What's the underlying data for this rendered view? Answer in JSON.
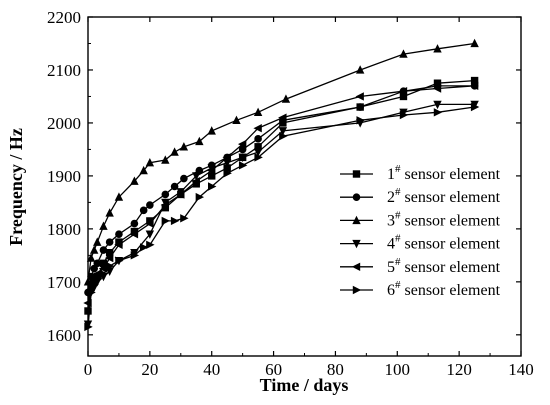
{
  "chart_data": {
    "type": "line",
    "xlabel": "Time / days",
    "ylabel": "Frequency / Hz",
    "xlim": [
      0,
      140
    ],
    "ylim": [
      1560,
      2200
    ],
    "xticks": [
      0,
      20,
      40,
      60,
      80,
      100,
      120,
      140
    ],
    "yticks": [
      1600,
      1700,
      1800,
      1900,
      2000,
      2100,
      2200
    ],
    "grid": false,
    "legend_position": "right",
    "series": [
      {
        "name": "1# sensor element",
        "label_main": "1",
        "label_sup": "#",
        "label_rest": " sensor element",
        "marker": "square",
        "x": [
          0,
          1,
          2,
          3,
          5,
          7,
          10,
          15,
          20,
          25,
          30,
          35,
          40,
          45,
          50,
          55,
          63,
          88,
          102,
          113,
          125
        ],
        "y": [
          1645,
          1690,
          1700,
          1710,
          1735,
          1755,
          1775,
          1795,
          1815,
          1840,
          1865,
          1885,
          1900,
          1915,
          1935,
          1955,
          2000,
          2030,
          2050,
          2075,
          2080
        ]
      },
      {
        "name": "2# sensor element",
        "label_main": "2",
        "label_sup": "#",
        "label_rest": " sensor element",
        "marker": "circle",
        "x": [
          0,
          1,
          2,
          3,
          5,
          7,
          10,
          15,
          18,
          20,
          25,
          28,
          31,
          36,
          40,
          45,
          50,
          55,
          63,
          88,
          102,
          113,
          125
        ],
        "y": [
          1680,
          1710,
          1725,
          1735,
          1760,
          1775,
          1790,
          1810,
          1835,
          1845,
          1865,
          1880,
          1895,
          1910,
          1920,
          1935,
          1950,
          1970,
          2005,
          2030,
          2060,
          2070,
          2070
        ]
      },
      {
        "name": "3# sensor element",
        "label_main": "3",
        "label_sup": "#",
        "label_rest": " sensor element",
        "marker": "triangle-up",
        "x": [
          0,
          1,
          2,
          3,
          5,
          7,
          10,
          15,
          18,
          20,
          25,
          28,
          31,
          36,
          40,
          48,
          55,
          64,
          88,
          102,
          113,
          125
        ],
        "y": [
          1700,
          1745,
          1760,
          1775,
          1805,
          1830,
          1860,
          1890,
          1910,
          1925,
          1930,
          1945,
          1955,
          1965,
          1985,
          2005,
          2020,
          2045,
          2100,
          2130,
          2140,
          2150
        ]
      },
      {
        "name": "4# sensor element",
        "label_main": "4",
        "label_sup": "#",
        "label_rest": " sensor element",
        "marker": "triangle-down",
        "x": [
          0,
          1,
          2,
          3,
          5,
          7,
          10,
          15,
          20,
          25,
          30,
          35,
          40,
          45,
          50,
          55,
          63,
          88,
          102,
          113,
          125
        ],
        "y": [
          1620,
          1680,
          1690,
          1700,
          1710,
          1720,
          1740,
          1755,
          1790,
          1850,
          1870,
          1900,
          1915,
          1925,
          1935,
          1945,
          1985,
          2000,
          2020,
          2035,
          2035
        ]
      },
      {
        "name": "5# sensor element",
        "label_main": "5",
        "label_sup": "#",
        "label_rest": " sensor element",
        "marker": "triangle-left",
        "x": [
          0,
          1,
          2,
          3,
          5,
          7,
          10,
          15,
          20,
          25,
          30,
          35,
          40,
          45,
          50,
          55,
          63,
          88,
          102,
          113,
          125
        ],
        "y": [
          1660,
          1695,
          1705,
          1715,
          1725,
          1745,
          1770,
          1790,
          1810,
          1845,
          1865,
          1890,
          1910,
          1935,
          1960,
          1990,
          2010,
          2050,
          2060,
          2065,
          2070
        ]
      },
      {
        "name": "6# sensor element",
        "label_main": "6",
        "label_sup": "#",
        "label_rest": " sensor element",
        "marker": "triangle-right",
        "x": [
          0,
          1,
          2,
          3,
          5,
          7,
          10,
          15,
          18,
          20,
          25,
          28,
          31,
          36,
          40,
          45,
          50,
          55,
          63,
          88,
          102,
          113,
          125
        ],
        "y": [
          1615,
          1680,
          1695,
          1705,
          1715,
          1730,
          1740,
          1750,
          1765,
          1770,
          1815,
          1815,
          1820,
          1860,
          1880,
          1905,
          1920,
          1935,
          1975,
          2005,
          2015,
          2020,
          2030
        ]
      }
    ]
  }
}
